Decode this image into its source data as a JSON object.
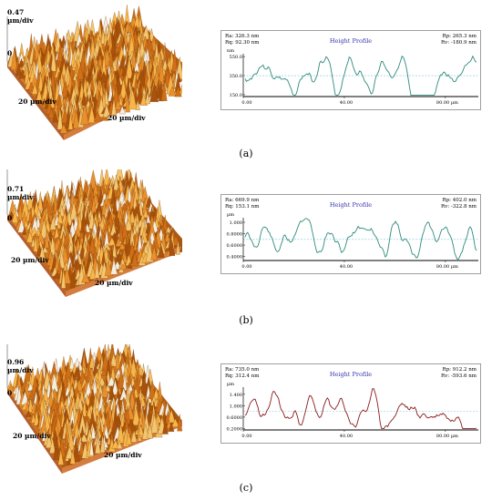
{
  "panels": [
    {
      "id": "a",
      "caption": "(a)",
      "afm": {
        "zmax": "0.47",
        "zunit": "µm/div",
        "zzero": "0",
        "xlabel": "20 µm/div",
        "ylabel": "20 µm/div"
      },
      "profile": {
        "title": "Height Profile",
        "ra": "Ra: 326.3 nm",
        "rq": "Rq: 92.30 nm",
        "rp": "Rp: 265.3 nm",
        "rv": "Rv: -180.9 nm",
        "yunit": "nm",
        "yticks": [
          "550.0",
          "350.0",
          "150.0"
        ],
        "xticks": [
          "0.00",
          "40.00",
          "80.00 µm"
        ],
        "color": "#2f8a7e"
      }
    },
    {
      "id": "b",
      "caption": "(b)",
      "afm": {
        "zmax": "0.71",
        "zunit": "µm/div",
        "zzero": "0",
        "xlabel": "20 µm/div",
        "ylabel": "20 µm/div"
      },
      "profile": {
        "title": "Height Profile",
        "ra": "Ra: 669.9 nm",
        "rq": "Rq: 153.1 nm",
        "rp": "Rp: 402.0 nm",
        "rv": "Rv: -322.8 nm",
        "yunit": "µm",
        "yticks": [
          "1.000",
          "0.8000",
          "0.6000",
          "0.4000"
        ],
        "xticks": [
          "0.00",
          "40.00",
          "80.00 µm"
        ],
        "color": "#2f8a7e"
      }
    },
    {
      "id": "c",
      "caption": "(c)",
      "afm": {
        "zmax": "0.96",
        "zunit": "µm/div",
        "zzero": "0",
        "xlabel": "20 µm/div",
        "ylabel": "20 µm/div"
      },
      "profile": {
        "title": "Height Profile",
        "ra": "Ra: 735.0 nm",
        "rq": "Rq: 312.4 nm",
        "rp": "Rp: 912.2 nm",
        "rv": "Rv: -593.6 nm",
        "yunit": "µm",
        "yticks": [
          "1.400",
          "1.000",
          "0.6000",
          "0.2000"
        ],
        "xticks": [
          "0.00",
          "40.00",
          "80.00 µm"
        ],
        "color": "#8b1a1a"
      }
    }
  ]
}
